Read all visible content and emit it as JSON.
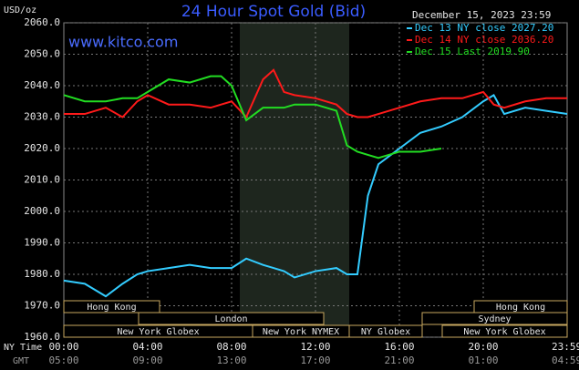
{
  "chart_data": {
    "type": "line",
    "title": "24 Hour Spot Gold (Bid)",
    "subtitle": "December 15, 2023 23:59",
    "watermark": "www.kitco.com",
    "ylabel": "USD/oz",
    "x_row_label": "NY Time",
    "x2_row_label": "GMT",
    "x": [
      0,
      1,
      2,
      2.8,
      3.5,
      4,
      5,
      6,
      7,
      7.5,
      8,
      8.7,
      9.5,
      10,
      10.5,
      11,
      12,
      13,
      13.5,
      14,
      14.5,
      15,
      16,
      17,
      18,
      19,
      20,
      20.5,
      21,
      22,
      23,
      24
    ],
    "series": [
      {
        "name": "Dec 13 NY close 2027.20",
        "color": "#33ccff",
        "values": [
          1978,
          1977,
          1973,
          1977,
          1980,
          1981,
          1982,
          1983,
          1982,
          1982,
          1982,
          1985,
          1983,
          1982,
          1981,
          1979,
          1981,
          1982,
          1980,
          1980,
          2005,
          2015,
          2020,
          2025,
          2027,
          2030,
          2035,
          2037,
          2031,
          2033,
          2032,
          2031
        ]
      },
      {
        "name": "Dec 14 NY close 2036.20",
        "color": "#ff1a1a",
        "values": [
          2031,
          2031,
          2033,
          2030,
          2035,
          2037,
          2034,
          2034,
          2033,
          2034,
          2035,
          2030,
          2042,
          2045,
          2038,
          2037,
          2036,
          2034,
          2031,
          2030,
          2030,
          2031,
          2033,
          2035,
          2036,
          2036,
          2038,
          2034,
          2033,
          2035,
          2036,
          2036
        ]
      },
      {
        "name": "Dec 15 Last 2019.90",
        "color": "#22dd22",
        "values": [
          2037,
          2035,
          2035,
          2036,
          2036,
          2038,
          2042,
          2041,
          2043,
          2043,
          2040,
          2029,
          2033,
          2033,
          2033,
          2034,
          2034,
          2032,
          2021,
          2019,
          2018,
          2017,
          2019,
          2019,
          2020,
          null,
          null,
          null,
          null,
          null,
          null,
          null
        ]
      }
    ],
    "xlim": [
      0,
      24
    ],
    "xticks": [
      {
        "value": 0,
        "label": "00:00"
      },
      {
        "value": 4,
        "label": "04:00"
      },
      {
        "value": 8,
        "label": "08:00"
      },
      {
        "value": 12,
        "label": "12:00"
      },
      {
        "value": 16,
        "label": "16:00"
      },
      {
        "value": 20,
        "label": "20:00"
      },
      {
        "value": 23.983,
        "label": "23:59"
      }
    ],
    "gmt_labels": [
      "05:00",
      "09:00",
      "13:00",
      "17:00",
      "21:00",
      "01:00",
      "04:59"
    ],
    "ylim": [
      1960,
      2060
    ],
    "yticks": [
      {
        "value": 1960,
        "label": "1960.0"
      },
      {
        "value": 1970,
        "label": "1970.0"
      },
      {
        "value": 1980,
        "label": "1980.0"
      },
      {
        "value": 1990,
        "label": "1990.0"
      },
      {
        "value": 2000,
        "label": "2000.0"
      },
      {
        "value": 2010,
        "label": "2010.0"
      },
      {
        "value": 2020,
        "label": "2020.0"
      },
      {
        "value": 2030,
        "label": "2030.0"
      },
      {
        "value": 2040,
        "label": "2040.0"
      },
      {
        "value": 2050,
        "label": "2050.0"
      },
      {
        "value": 2060,
        "label": "2060.0"
      }
    ],
    "grid": true,
    "sessions": [
      "Hong Kong",
      "Hong Kong",
      "London",
      "Sydney",
      "New York Globex",
      "New York NYMEX",
      "NY Globex",
      "New York Globex"
    ]
  }
}
